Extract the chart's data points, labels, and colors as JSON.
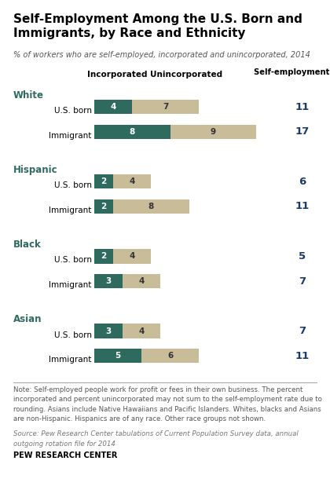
{
  "title": "Self-Employment Among the U.S. Born and\nImmigrants, by Race and Ethnicity",
  "subtitle": "% of workers who are self-employed, incorporated and unincorporated, 2014",
  "col_headers": [
    "Incorporated",
    "Unincorporated",
    "Self-employment rate"
  ],
  "rows": [
    {
      "group": "White",
      "label": "U.S. born",
      "inc": 4,
      "uninc": 7,
      "rate": 11
    },
    {
      "group": "White",
      "label": "Immigrant",
      "inc": 8,
      "uninc": 9,
      "rate": 17
    },
    {
      "group": "Hispanic",
      "label": "U.S. born",
      "inc": 2,
      "uninc": 4,
      "rate": 6
    },
    {
      "group": "Hispanic",
      "label": "Immigrant",
      "inc": 2,
      "uninc": 8,
      "rate": 11
    },
    {
      "group": "Black",
      "label": "U.S. born",
      "inc": 2,
      "uninc": 4,
      "rate": 5
    },
    {
      "group": "Black",
      "label": "Immigrant",
      "inc": 3,
      "uninc": 4,
      "rate": 7
    },
    {
      "group": "Asian",
      "label": "U.S. born",
      "inc": 3,
      "uninc": 4,
      "rate": 7
    },
    {
      "group": "Asian",
      "label": "Immigrant",
      "inc": 5,
      "uninc": 6,
      "rate": 11
    }
  ],
  "group_info": [
    {
      "name": "White",
      "rows": [
        0,
        1
      ]
    },
    {
      "name": "Hispanic",
      "rows": [
        2,
        3
      ]
    },
    {
      "name": "Black",
      "rows": [
        4,
        5
      ]
    },
    {
      "name": "Asian",
      "rows": [
        6,
        7
      ]
    }
  ],
  "color_inc": "#2e6b5e",
  "color_uninc": "#c8bc99",
  "color_group_label": "#2e6b5e",
  "color_rate": "#1a3a6b",
  "note": "Note: Self-employed people work for profit or fees in their own business. The percent\nincorporated and percent unincorporated may not sum to the self-employment rate due to\nrounding. Asians include Native Hawaiians and Pacific Islanders. Whites, blacks and Asians\nare non-Hispanic. Hispanics are of any race. Other race groups not shown.",
  "source": "Source: Pew Research Center tabulations of Current Population Survey data, annual\noutgoing rotation file for 2014",
  "branding": "PEW RESEARCH CENTER",
  "bg_color": "#ffffff",
  "scale_max": 17
}
